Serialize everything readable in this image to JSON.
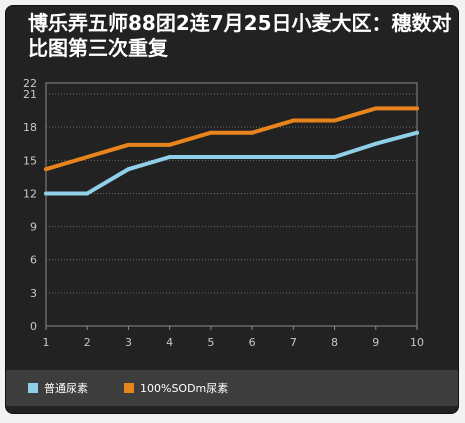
{
  "chart_data": {
    "type": "line",
    "title": "博乐弄五师88团2连7月25日小麦大区：穗数对比图第三次重复",
    "x": [
      1,
      2,
      3,
      4,
      5,
      6,
      7,
      8,
      9,
      10
    ],
    "y_ticks": [
      0,
      3,
      6,
      9,
      12,
      15,
      18,
      21,
      22
    ],
    "ylim": [
      0,
      22
    ],
    "grid": true,
    "legend_position": "bottom",
    "series": [
      {
        "name": "普通尿素",
        "color": "#8fd0e8",
        "values": [
          12,
          12,
          14.2,
          15.3,
          15.3,
          15.3,
          15.3,
          15.3,
          16.5,
          17.5
        ]
      },
      {
        "name": "100%SODm尿素",
        "color": "#e8841c",
        "values": [
          14.2,
          15.3,
          16.4,
          16.4,
          17.5,
          17.5,
          18.6,
          18.6,
          19.7,
          19.7
        ]
      }
    ]
  }
}
